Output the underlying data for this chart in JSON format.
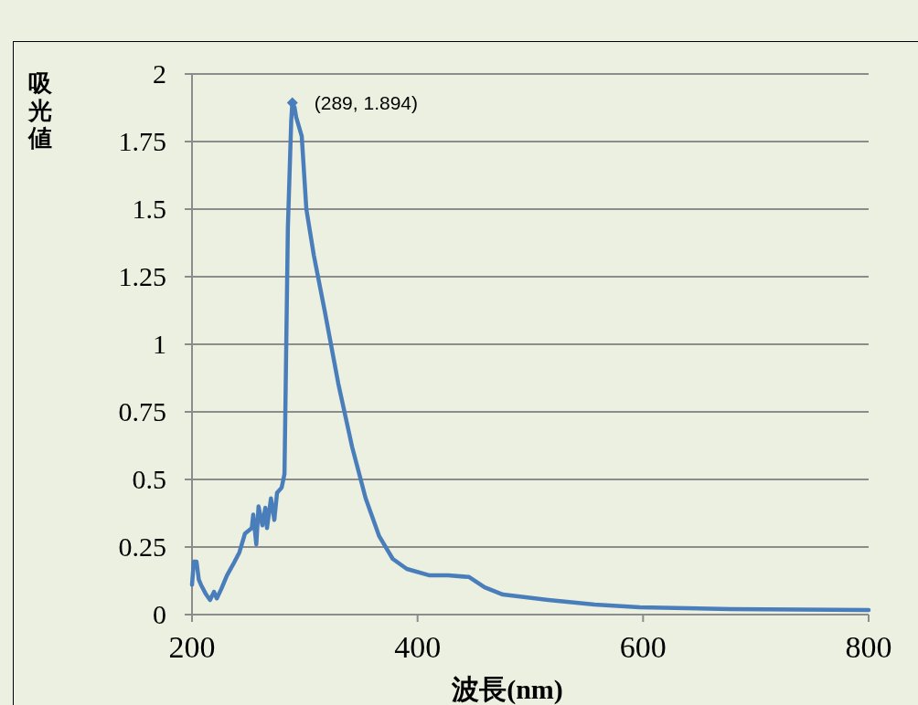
{
  "chart_data": {
    "type": "line",
    "xlabel": "波長(nm)",
    "ylabel": "吸光値",
    "xlim": [
      200,
      800
    ],
    "ylim": [
      0,
      2
    ],
    "xticks": [
      200,
      400,
      600,
      800
    ],
    "yticks": [
      0,
      0.25,
      0.5,
      0.75,
      1,
      1.25,
      1.5,
      1.75,
      2
    ],
    "grid": "y",
    "line_style": "solid",
    "series": [
      {
        "color": "#4a7ebb",
        "x": [
          200,
          201.6,
          204,
          206,
          208,
          212,
          216,
          219.5,
          222,
          226,
          231,
          236.5,
          242,
          247,
          253,
          254.3,
          257,
          259,
          262.4,
          265,
          266.5,
          270,
          273,
          275.4,
          279.5,
          282,
          285,
          288,
          289,
          291,
          292.4,
          297.3,
          301.4,
          308,
          317.6,
          329.7,
          342,
          354,
          366,
          378,
          390.5,
          410.8,
          427,
          445.7,
          459.5,
          475.7,
          516,
          557,
          597,
          678,
          800
        ],
        "values": [
          0.11,
          0.196,
          0.196,
          0.13,
          0.11,
          0.078,
          0.054,
          0.084,
          0.06,
          0.095,
          0.145,
          0.186,
          0.23,
          0.3,
          0.32,
          0.37,
          0.26,
          0.4,
          0.33,
          0.395,
          0.32,
          0.43,
          0.35,
          0.45,
          0.47,
          0.52,
          1.43,
          1.83,
          1.894,
          1.875,
          1.84,
          1.77,
          1.5,
          1.33,
          1.125,
          0.855,
          0.62,
          0.43,
          0.29,
          0.206,
          0.169,
          0.145,
          0.145,
          0.139,
          0.101,
          0.074,
          0.054,
          0.037,
          0.027,
          0.02,
          0.017
        ]
      },
      {
        "type": "scatter",
        "marker": "diamond",
        "color": "#4a7ebb",
        "x": [
          289
        ],
        "values": [
          1.894
        ]
      }
    ],
    "annotations": [
      {
        "text": "(289, 1.894)",
        "x": 289,
        "y": 1.894
      }
    ]
  }
}
